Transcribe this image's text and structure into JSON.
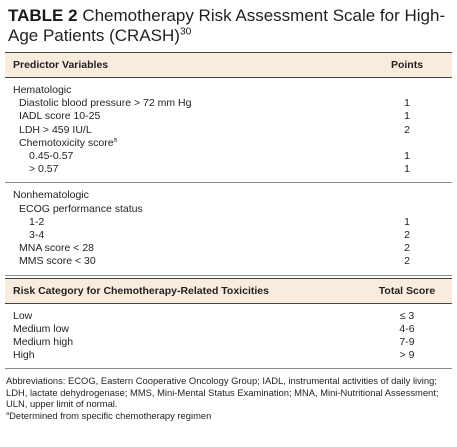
{
  "title": {
    "label": "TABLE 2",
    "text": "Chemotherapy Risk Assessment Scale for High-Age Patients (CRASH)",
    "ref": "30"
  },
  "table1": {
    "headers": [
      "Predictor Variables",
      "Points"
    ],
    "groups": [
      {
        "heading": "Hematologic",
        "items": [
          {
            "label": "Diastolic blood pressure > 72 mm Hg",
            "points": 1
          },
          {
            "label": "IADL score 10-25",
            "points": 1
          },
          {
            "label": "LDH > 459 IU/L",
            "points": 2
          },
          {
            "label": "Chemotoxicity score",
            "note": "a",
            "items": [
              {
                "label": "0.45-0.57",
                "points": 1
              },
              {
                "label": "> 0.57",
                "points": 1
              }
            ]
          }
        ]
      },
      {
        "heading": "Nonhematologic",
        "items": [
          {
            "label": "ECOG performance status",
            "items": [
              {
                "label": "1-2",
                "points": 1
              },
              {
                "label": "3-4",
                "points": 2
              }
            ]
          },
          {
            "label": "MNA score < 28",
            "points": 2
          },
          {
            "label": "MMS score < 30",
            "points": 2
          }
        ]
      }
    ]
  },
  "table2": {
    "headers": [
      "Risk Category for Chemotherapy-Related Toxicities",
      "Total Score"
    ],
    "rows": [
      [
        "Low",
        "≤ 3"
      ],
      [
        "Medium low",
        "4-6"
      ],
      [
        "Medium high",
        "7-9"
      ],
      [
        "High",
        "> 9"
      ]
    ]
  },
  "footnotes": {
    "abbreviations": "Abbreviations: ECOG, Eastern Cooperative Oncology Group; IADL, instrumental activities of daily living; LDH, lactate dehydrogenase; MMS, Mini-Mental Status Examination; MNA, Mini-Nutritional Assessment; ULN, upper limit of normal.",
    "notes": [
      {
        "marker": "a",
        "text": "Determined from specific chemotherapy regimen"
      }
    ]
  }
}
